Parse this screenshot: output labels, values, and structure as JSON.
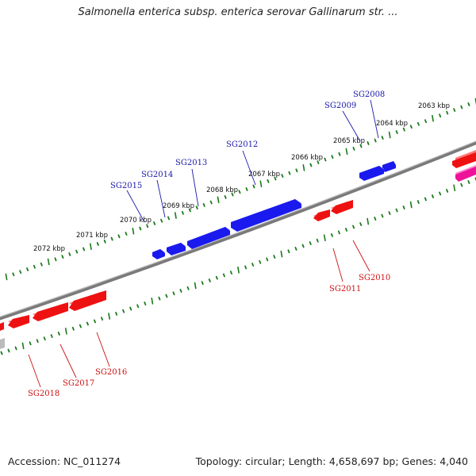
{
  "title": "Salmonella enterica subsp. enterica serovar Gallinarum str. ...",
  "accession": "Accession: NC_011274",
  "summary": "Topology: circular; Length: 4,658,697 bp; Genes: 4,040",
  "colors": {
    "forward_gene": "#1a1aee",
    "reverse_gene": "#ee1111",
    "pink_gene": "#ee1199",
    "backbone": "#808080",
    "tick": "#1a7a1a",
    "forward_label": "#1a1aaa",
    "reverse_label": "#cc1111"
  },
  "kbp_labels": [
    "2063 kbp",
    "2064 kbp",
    "2065 kbp",
    "2066 kbp",
    "2067 kbp",
    "2068 kbp",
    "2069 kbp",
    "2070 kbp",
    "2071 kbp",
    "2072 kbp"
  ],
  "forward_genes": [
    "SG2008",
    "SG2009",
    "SG2012",
    "SG2013",
    "SG2014",
    "SG2015"
  ],
  "reverse_genes": [
    "SG2010",
    "SG2011",
    "SG2016",
    "SG2017",
    "SG2018"
  ]
}
